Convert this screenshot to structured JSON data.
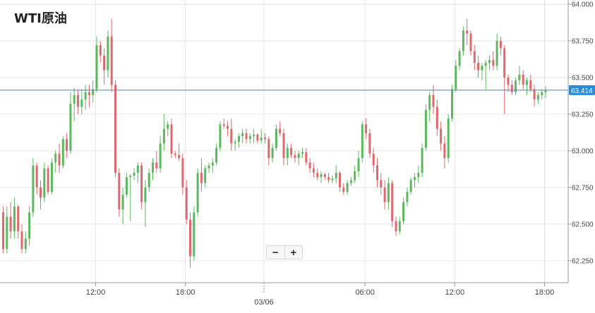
{
  "title": "WTI原油",
  "zoom": {
    "out_label": "−",
    "in_label": "+"
  },
  "chart_data": {
    "type": "candlestick",
    "title": "WTI原油",
    "ylim": [
      62.1,
      64.0
    ],
    "y_ticks": [
      "64.000",
      "63.750",
      "63.500",
      "63.250",
      "63.000",
      "62.750",
      "62.500",
      "62.250"
    ],
    "y_tick_values": [
      64.0,
      63.75,
      63.5,
      63.25,
      63.0,
      62.75,
      62.5,
      62.25
    ],
    "x_tick_labels": [
      "12:00",
      "18:00",
      "06:00",
      "12:00",
      "18:00"
    ],
    "x_tick_index": [
      25,
      49,
      97,
      121,
      145
    ],
    "date_divider_label": "03/06",
    "date_divider_index": 70,
    "current_price": 63.414,
    "current_price_label": "63.414",
    "up_color": "#5cb85c",
    "down_color": "#e0676b",
    "candles": [
      [
        62.58,
        62.62,
        62.3,
        62.33
      ],
      [
        62.33,
        62.62,
        62.3,
        62.55
      ],
      [
        62.55,
        62.65,
        62.4,
        62.45
      ],
      [
        62.45,
        62.68,
        62.4,
        62.62
      ],
      [
        62.62,
        62.63,
        62.4,
        62.45
      ],
      [
        62.45,
        62.5,
        62.3,
        62.33
      ],
      [
        62.33,
        62.45,
        62.3,
        62.4
      ],
      [
        62.4,
        62.62,
        62.35,
        62.58
      ],
      [
        62.58,
        62.95,
        62.55,
        62.9
      ],
      [
        62.9,
        62.92,
        62.7,
        62.75
      ],
      [
        62.75,
        62.8,
        62.6,
        62.68
      ],
      [
        62.68,
        62.92,
        62.65,
        62.88
      ],
      [
        62.88,
        62.9,
        62.7,
        62.72
      ],
      [
        62.72,
        62.95,
        62.7,
        62.92
      ],
      [
        62.92,
        63.0,
        62.85,
        62.98
      ],
      [
        62.98,
        63.05,
        62.85,
        62.9
      ],
      [
        62.9,
        63.1,
        62.88,
        63.08
      ],
      [
        63.08,
        63.12,
        62.95,
        63.0
      ],
      [
        63.0,
        63.4,
        62.98,
        63.32
      ],
      [
        63.32,
        63.43,
        63.2,
        63.38
      ],
      [
        63.38,
        63.42,
        63.25,
        63.3
      ],
      [
        63.3,
        63.42,
        63.25,
        63.35
      ],
      [
        63.35,
        63.45,
        63.28,
        63.4
      ],
      [
        63.4,
        63.45,
        63.3,
        63.38
      ],
      [
        63.38,
        63.48,
        63.33,
        63.42
      ],
      [
        63.42,
        63.78,
        63.4,
        63.72
      ],
      [
        63.72,
        63.75,
        63.6,
        63.65
      ],
      [
        63.65,
        63.7,
        63.45,
        63.55
      ],
      [
        63.55,
        63.82,
        63.5,
        63.78
      ],
      [
        63.78,
        63.9,
        63.4,
        63.45
      ],
      [
        63.45,
        63.48,
        62.82,
        62.85
      ],
      [
        62.85,
        62.88,
        62.55,
        62.6
      ],
      [
        62.6,
        62.75,
        62.5,
        62.7
      ],
      [
        62.7,
        62.85,
        62.68,
        62.82
      ],
      [
        62.82,
        62.84,
        62.52,
        62.83
      ],
      [
        62.83,
        62.88,
        62.8,
        62.85
      ],
      [
        62.85,
        62.92,
        62.78,
        62.9
      ],
      [
        62.9,
        62.92,
        62.6,
        62.65
      ],
      [
        62.65,
        62.8,
        62.48,
        62.75
      ],
      [
        62.75,
        62.88,
        62.72,
        62.85
      ],
      [
        62.85,
        62.95,
        62.8,
        62.92
      ],
      [
        62.92,
        63.0,
        62.85,
        62.88
      ],
      [
        62.88,
        63.1,
        62.85,
        63.05
      ],
      [
        63.05,
        63.25,
        63.0,
        63.15
      ],
      [
        63.15,
        63.2,
        63.1,
        63.18
      ],
      [
        63.18,
        63.22,
        62.95,
        62.98
      ],
      [
        62.98,
        63.0,
        62.95,
        62.97
      ],
      [
        62.97,
        63.05,
        62.93,
        62.95
      ],
      [
        62.95,
        62.98,
        62.7,
        62.75
      ],
      [
        62.75,
        62.8,
        62.5,
        62.53
      ],
      [
        62.53,
        62.58,
        62.2,
        62.28
      ],
      [
        62.28,
        62.62,
        62.25,
        62.58
      ],
      [
        62.58,
        62.88,
        62.55,
        62.85
      ],
      [
        62.85,
        62.95,
        62.72,
        62.78
      ],
      [
        62.78,
        62.9,
        62.75,
        62.88
      ],
      [
        62.88,
        62.92,
        62.85,
        62.9
      ],
      [
        62.9,
        62.95,
        62.85,
        62.92
      ],
      [
        62.92,
        63.05,
        62.9,
        63.02
      ],
      [
        63.02,
        63.2,
        63.0,
        63.18
      ],
      [
        63.18,
        63.22,
        63.15,
        63.17
      ],
      [
        63.17,
        63.2,
        63.1,
        63.15
      ],
      [
        63.15,
        63.22,
        63.0,
        63.05
      ],
      [
        63.05,
        63.08,
        63.0,
        63.06
      ],
      [
        63.06,
        63.12,
        63.02,
        63.1
      ],
      [
        63.1,
        63.15,
        63.05,
        63.12
      ],
      [
        63.12,
        63.15,
        63.05,
        63.08
      ],
      [
        63.08,
        63.12,
        63.05,
        63.1
      ],
      [
        63.1,
        63.15,
        63.05,
        63.11
      ],
      [
        63.11,
        63.12,
        63.05,
        63.07
      ],
      [
        63.07,
        63.15,
        63.05,
        63.09
      ],
      [
        63.09,
        63.12,
        63.05,
        63.08
      ],
      [
        63.08,
        63.1,
        62.9,
        62.95
      ],
      [
        62.95,
        63.05,
        62.92,
        63.02
      ],
      [
        63.02,
        63.18,
        63.0,
        63.15
      ],
      [
        63.15,
        63.2,
        63.1,
        63.12
      ],
      [
        63.12,
        63.15,
        62.9,
        62.95
      ],
      [
        62.95,
        63.05,
        62.9,
        63.02
      ],
      [
        63.02,
        63.05,
        62.95,
        62.97
      ],
      [
        62.97,
        63.0,
        62.92,
        62.95
      ],
      [
        62.95,
        63.0,
        62.9,
        62.98
      ],
      [
        62.98,
        63.02,
        62.95,
        62.99
      ],
      [
        62.99,
        63.02,
        62.9,
        62.92
      ],
      [
        62.92,
        62.95,
        62.85,
        62.88
      ],
      [
        62.88,
        62.92,
        62.82,
        62.85
      ],
      [
        62.85,
        62.88,
        62.8,
        62.82
      ],
      [
        62.82,
        62.86,
        62.78,
        62.84
      ],
      [
        62.84,
        62.85,
        62.8,
        62.82
      ],
      [
        62.82,
        62.85,
        62.78,
        62.8
      ],
      [
        62.8,
        62.83,
        62.78,
        62.81
      ],
      [
        62.81,
        62.9,
        62.78,
        62.85
      ],
      [
        62.85,
        62.86,
        62.72,
        62.75
      ],
      [
        62.75,
        62.78,
        62.7,
        62.72
      ],
      [
        62.72,
        62.8,
        62.7,
        62.78
      ],
      [
        62.78,
        62.82,
        62.76,
        62.8
      ],
      [
        62.8,
        62.9,
        62.78,
        62.86
      ],
      [
        62.86,
        63.0,
        62.82,
        62.95
      ],
      [
        62.95,
        63.2,
        62.92,
        63.18
      ],
      [
        63.18,
        63.22,
        63.08,
        63.12
      ],
      [
        63.12,
        63.15,
        62.95,
        62.98
      ],
      [
        62.98,
        63.02,
        62.85,
        62.9
      ],
      [
        62.9,
        62.95,
        62.75,
        62.8
      ],
      [
        62.8,
        62.85,
        62.7,
        62.75
      ],
      [
        62.75,
        62.8,
        62.6,
        62.65
      ],
      [
        62.65,
        62.82,
        62.6,
        62.78
      ],
      [
        62.78,
        62.8,
        62.48,
        62.52
      ],
      [
        62.52,
        62.55,
        62.42,
        62.45
      ],
      [
        62.45,
        62.55,
        62.43,
        62.52
      ],
      [
        62.52,
        62.68,
        62.5,
        62.65
      ],
      [
        62.65,
        62.75,
        62.62,
        62.72
      ],
      [
        62.72,
        62.82,
        62.7,
        62.8
      ],
      [
        62.8,
        62.85,
        62.75,
        62.82
      ],
      [
        62.82,
        62.9,
        62.78,
        62.85
      ],
      [
        62.85,
        63.05,
        62.82,
        63.02
      ],
      [
        63.02,
        63.32,
        63.0,
        63.28
      ],
      [
        63.28,
        63.4,
        63.2,
        63.38
      ],
      [
        63.38,
        63.45,
        63.25,
        63.3
      ],
      [
        63.3,
        63.35,
        63.1,
        63.15
      ],
      [
        63.15,
        63.2,
        63.0,
        63.05
      ],
      [
        63.05,
        63.1,
        62.88,
        62.95
      ],
      [
        62.95,
        63.25,
        62.92,
        63.22
      ],
      [
        63.22,
        63.45,
        63.2,
        63.42
      ],
      [
        63.42,
        63.62,
        63.4,
        63.58
      ],
      [
        63.58,
        63.7,
        63.55,
        63.68
      ],
      [
        63.68,
        63.85,
        63.65,
        63.82
      ],
      [
        63.82,
        63.9,
        63.72,
        63.8
      ],
      [
        63.8,
        63.82,
        63.65,
        63.68
      ],
      [
        63.68,
        63.72,
        63.55,
        63.6
      ],
      [
        63.6,
        63.65,
        63.5,
        63.55
      ],
      [
        63.55,
        63.6,
        63.48,
        63.58
      ],
      [
        63.58,
        63.62,
        63.42,
        63.6
      ],
      [
        63.6,
        63.65,
        63.55,
        63.62
      ],
      [
        63.62,
        63.68,
        63.55,
        63.58
      ],
      [
        63.58,
        63.8,
        63.55,
        63.75
      ],
      [
        63.75,
        63.78,
        63.65,
        63.7
      ],
      [
        63.7,
        63.72,
        63.25,
        63.5
      ],
      [
        63.5,
        63.52,
        63.4,
        63.45
      ],
      [
        63.45,
        63.48,
        63.38,
        63.4
      ],
      [
        63.4,
        63.5,
        63.38,
        63.48
      ],
      [
        63.48,
        63.58,
        63.45,
        63.52
      ],
      [
        63.52,
        63.55,
        63.42,
        63.45
      ],
      [
        63.45,
        63.5,
        63.38,
        63.48
      ],
      [
        63.48,
        63.52,
        63.4,
        63.42
      ],
      [
        63.42,
        63.45,
        63.3,
        63.35
      ],
      [
        63.35,
        63.4,
        63.32,
        63.38
      ],
      [
        63.38,
        63.42,
        63.35,
        63.4
      ],
      [
        63.4,
        63.44,
        63.36,
        63.41
      ]
    ]
  }
}
